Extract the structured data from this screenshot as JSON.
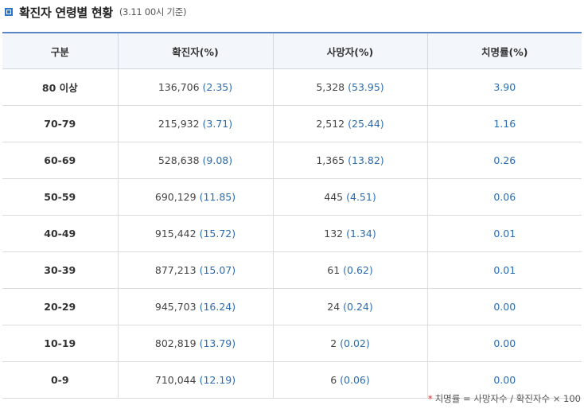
{
  "header": {
    "title": "확진자 연령별 현황",
    "subtitle": "(3.11 00시 기준)"
  },
  "table": {
    "headers": [
      "구분",
      "확진자(%)",
      "사망자(%)",
      "치명률(%)"
    ],
    "rows": [
      {
        "age": "80 이상",
        "cases": "136,706",
        "cases_pct": "(2.35)",
        "deaths": "5,328",
        "deaths_pct": "(53.95)",
        "cfr": "3.90"
      },
      {
        "age": "70-79",
        "cases": "215,932",
        "cases_pct": "(3.71)",
        "deaths": "2,512",
        "deaths_pct": "(25.44)",
        "cfr": "1.16"
      },
      {
        "age": "60-69",
        "cases": "528,638",
        "cases_pct": "(9.08)",
        "deaths": "1,365",
        "deaths_pct": "(13.82)",
        "cfr": "0.26"
      },
      {
        "age": "50-59",
        "cases": "690,129",
        "cases_pct": "(11.85)",
        "deaths": "445",
        "deaths_pct": "(4.51)",
        "cfr": "0.06"
      },
      {
        "age": "40-49",
        "cases": "915,442",
        "cases_pct": "(15.72)",
        "deaths": "132",
        "deaths_pct": "(1.34)",
        "cfr": "0.01"
      },
      {
        "age": "30-39",
        "cases": "877,213",
        "cases_pct": "(15.07)",
        "deaths": "61",
        "deaths_pct": "(0.62)",
        "cfr": "0.01"
      },
      {
        "age": "20-29",
        "cases": "945,703",
        "cases_pct": "(16.24)",
        "deaths": "24",
        "deaths_pct": "(0.24)",
        "cfr": "0.00"
      },
      {
        "age": "10-19",
        "cases": "802,819",
        "cases_pct": "(13.79)",
        "deaths": "2",
        "deaths_pct": "(0.02)",
        "cfr": "0.00"
      },
      {
        "age": "0-9",
        "cases": "710,044",
        "cases_pct": "(12.19)",
        "deaths": "6",
        "deaths_pct": "(0.06)",
        "cfr": "0.00"
      }
    ]
  },
  "footnote": {
    "star": "*",
    "text": "치명률 = 사망자수 / 확진자수 × 100"
  },
  "colors": {
    "accent": "#2f77c6",
    "header_bg": "#f3f7fc",
    "value_blue": "#2b6cb0",
    "star_red": "#d32f2f"
  },
  "icons": {
    "title_bullet": "square-bullet-icon"
  }
}
